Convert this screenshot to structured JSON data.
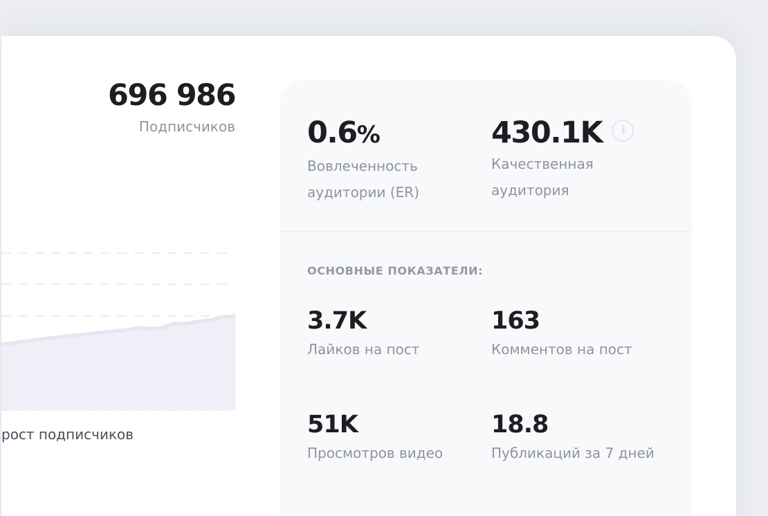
{
  "subscribers": {
    "value": "696 986",
    "label": "Подписчиков"
  },
  "chart_caption": "рост подписчиков",
  "engagement": {
    "value": "0.6",
    "unit": "%",
    "label_line1": "Вовлеченность",
    "label_line2": "аудитории (ER)"
  },
  "quality_audience": {
    "value": "430.1K",
    "label_line1": "Качественная",
    "label_line2": "аудитория",
    "icon": "info-icon"
  },
  "section_title": "ОСНОВНЫЕ ПОКАЗАТЕЛИ:",
  "metrics": [
    {
      "value": "3.7K",
      "label": "Лайков на пост"
    },
    {
      "value": "163",
      "label": "Комментов на пост"
    },
    {
      "value": "51K",
      "label": "Просмотров видео"
    },
    {
      "value": "18.8",
      "label": "Публикаций за 7 дней"
    }
  ],
  "colors": {
    "area_fill": "#eeeff7",
    "area_line": "#e4e6f1",
    "gridline": "#e3e5ea"
  }
}
